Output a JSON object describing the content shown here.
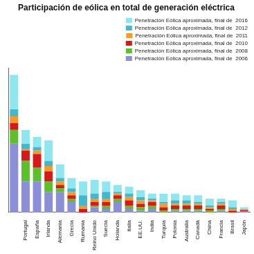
{
  "chart_data": {
    "type": "bar",
    "title": "Participación de eólica en total de generación eléctrica",
    "categories": [
      null,
      "Portugal",
      "España",
      "Irlanda",
      "Alemania",
      "Grecia",
      "Rumania",
      "Reino Unido",
      "Suecia",
      "Holanda",
      "Italia",
      "EE.UU.",
      "India",
      "Turquía",
      "Polonia",
      "Australia",
      "Canadá",
      "China",
      "Francia",
      "Brasil",
      "Japón"
    ],
    "series": [
      {
        "name": "Penetración Eólica aproximada, final de  2006",
        "color": "#8b8fd8",
        "values": [
          20,
          9,
          9,
          6,
          6,
          3,
          0,
          1.5,
          1,
          3,
          1,
          0.5,
          1,
          0,
          0.5,
          0.5,
          0.5,
          0,
          0.5,
          0,
          0.2
        ]
      },
      {
        "name": "Penetración Eólica aproximada, final de  2008",
        "color": "#5cc02b",
        "values": [
          4,
          6,
          4,
          3,
          1,
          1,
          0,
          0.5,
          1,
          1,
          1,
          1,
          1,
          0.5,
          0.5,
          0.5,
          0.5,
          0.5,
          0.5,
          0,
          0.2
        ]
      },
      {
        "name": "Penetración Eólica aproximada, final de  2010",
        "color": "#d7191c",
        "values": [
          2,
          3,
          4,
          3,
          1,
          1,
          1,
          1,
          1,
          1,
          1.5,
          1,
          1,
          1,
          1,
          1,
          1,
          0.5,
          1,
          0.5,
          0.3
        ]
      },
      {
        "name": "Penetración Eólica aproximada, final de  2011",
        "color": "#f59a23",
        "values": [
          2,
          0.5,
          1,
          1.5,
          1,
          1,
          1,
          1,
          1,
          0.5,
          1,
          1,
          0.5,
          1,
          0.5,
          0.5,
          0.5,
          0.5,
          0.5,
          0.5,
          0.2
        ]
      },
      {
        "name": "Penetración Eólica aproximada, final de  2012",
        "color": "#3fb8d0",
        "values": [
          2,
          1.5,
          1,
          1.5,
          1,
          1,
          3,
          1.5,
          2,
          0.5,
          1,
          1,
          0.5,
          0.5,
          1,
          1,
          0.5,
          0.5,
          0.5,
          0.5,
          0.1
        ]
      },
      {
        "name": "Penetración Eólica aproximada, final de  2016",
        "color": "#8ee6ef",
        "values": [
          10,
          4,
          3,
          6,
          4,
          3,
          4,
          4,
          3,
          2,
          2,
          2,
          1.5,
          2.5,
          2,
          1.5,
          2,
          2,
          1,
          2,
          0.5
        ]
      }
    ],
    "ylim": [
      0,
      42
    ],
    "stacked": true,
    "grid": false,
    "legend": "top",
    "tick_labels": "x"
  }
}
